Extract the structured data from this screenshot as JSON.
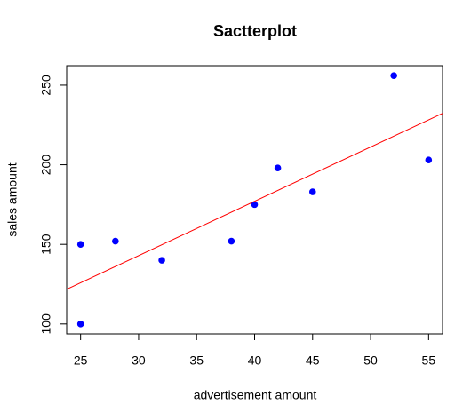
{
  "chart_data": {
    "type": "scatter",
    "title": "Sactterplot",
    "x_label": "advertisement amount",
    "y_label": "sales amount",
    "x": [
      25,
      25,
      28,
      32,
      38,
      40,
      42,
      45,
      52,
      55
    ],
    "values": [
      150,
      100,
      152,
      140,
      152,
      175,
      198,
      183,
      256,
      203
    ],
    "color": "#0000ff",
    "fit_line": {
      "intercept": 40.56,
      "slope": 3.412,
      "color": "#ff0000"
    },
    "xlim": [
      23.8,
      56.2
    ],
    "xticks": [
      25,
      30,
      35,
      40,
      45,
      50,
      55
    ],
    "ylim": [
      93.76,
      262.24
    ],
    "yticks": [
      100,
      150,
      200,
      250
    ]
  }
}
